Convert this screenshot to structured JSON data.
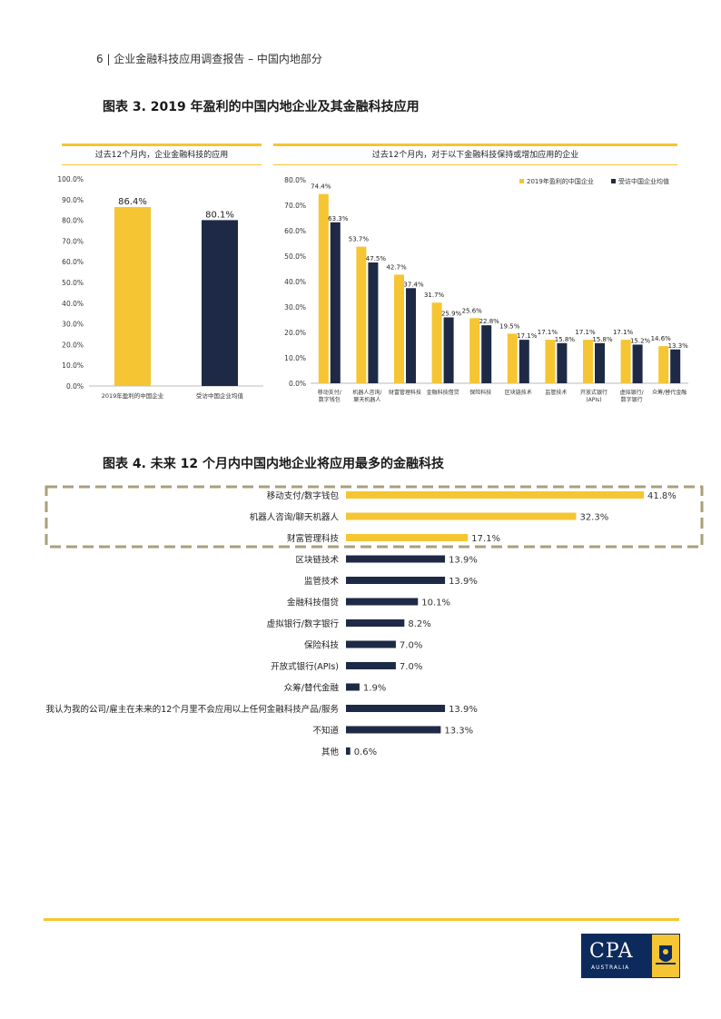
{
  "header": {
    "text": "6 | 企业金融科技应用调查报告 – 中国内地部分"
  },
  "fig3": {
    "title": "图表 3. 2019 年盈利的中国内地企业及其金融科技应用",
    "left_panel_title": "过去12个月内，企业金融科技的应用",
    "right_panel_title": "过去12个月内，对于以下金融科技保持或增加应用的企业"
  },
  "fig4": {
    "title": "图表 4. 未来 12 个月内中国内地企业将应用最多的金融科技"
  },
  "logo": {
    "text": "CPA",
    "sub": "AUSTRALIA"
  },
  "colors": {
    "yellow": "#f5c533",
    "navy": "#1e2a45",
    "gold_line": "#f5c533",
    "dash": "#a8a07a"
  },
  "chart_data": [
    {
      "type": "bar",
      "categories": [
        "2019年盈利的中国企业",
        "受访中国企业均值"
      ],
      "values": [
        86.4,
        80.1
      ],
      "labels": [
        "86.4%",
        "80.1%"
      ],
      "yticks": [
        "0.0%",
        "10.0%",
        "20.0%",
        "30.0%",
        "40.0%",
        "50.0%",
        "60.0%",
        "70.0%",
        "80.0%",
        "90.0%",
        "100.0%"
      ],
      "ylim": [
        0,
        100
      ]
    },
    {
      "type": "bar",
      "categories": [
        "移动支付/数字钱包",
        "机器人咨询/聊天机器人",
        "财富管理科技",
        "金融科技借贷",
        "保险科技",
        "区块链技术",
        "监管技术",
        "开放式银行(APIs)",
        "虚拟银行/数字银行",
        "众筹/替代金融"
      ],
      "category_lines": [
        [
          "移动支付/",
          "数字钱包"
        ],
        [
          "机器人咨询/",
          "聊天机器人"
        ],
        [
          "财富管理科技"
        ],
        [
          "金融科技借贷"
        ],
        [
          "保险科技"
        ],
        [
          "区块链技术"
        ],
        [
          "监管技术"
        ],
        [
          "开放式银行",
          "(APIs)"
        ],
        [
          "虚拟银行/",
          "数字银行"
        ],
        [
          "众筹/替代金融"
        ]
      ],
      "series": [
        {
          "name": "2019年盈利的中国企业",
          "values": [
            74.4,
            53.7,
            42.7,
            31.7,
            25.6,
            19.5,
            17.1,
            17.1,
            17.1,
            14.6
          ],
          "labels": [
            "74.4%",
            "53.7%",
            "42.7%",
            "31.7%",
            "25.6%",
            "19.5%",
            "17.1%",
            "17.1%",
            "17.1%",
            "14.6%"
          ]
        },
        {
          "name": "受访中国企业均值",
          "values": [
            63.3,
            47.5,
            37.4,
            25.9,
            22.8,
            17.1,
            15.8,
            15.8,
            15.2,
            13.3
          ],
          "labels": [
            "63.3%",
            "47.5%",
            "37.4%",
            "25.9%",
            "22.8%",
            "17.1%",
            "15.8%",
            "15.8%",
            "15.2%",
            "13.3%"
          ]
        }
      ],
      "yticks": [
        "0.0%",
        "10.0%",
        "20.0%",
        "30.0%",
        "40.0%",
        "50.0%",
        "60.0%",
        "70.0%",
        "80.0%"
      ],
      "ylim": [
        0,
        80
      ],
      "legend": "top-right"
    },
    {
      "type": "bar",
      "orientation": "horizontal",
      "categories": [
        "移动支付/数字钱包",
        "机器人咨询/聊天机器人",
        "财富管理科技",
        "区块链技术",
        "监管技术",
        "金融科技借贷",
        "虚拟银行/数字银行",
        "保险科技",
        "开放式银行(APIs)",
        "众筹/替代金融",
        "我认为我的公司/雇主在未来的12个月里不会应用以上任何金融科技产品/服务",
        "不知道",
        "其他"
      ],
      "values": [
        41.8,
        32.3,
        17.1,
        13.9,
        13.9,
        10.1,
        8.2,
        7.0,
        7.0,
        1.9,
        13.9,
        13.3,
        0.6
      ],
      "labels": [
        "41.8%",
        "32.3%",
        "17.1%",
        "13.9%",
        "13.9%",
        "10.1%",
        "8.2%",
        "7.0%",
        "7.0%",
        "1.9%",
        "13.9%",
        "13.3%",
        "0.6%"
      ],
      "highlighted_count": 3
    }
  ]
}
